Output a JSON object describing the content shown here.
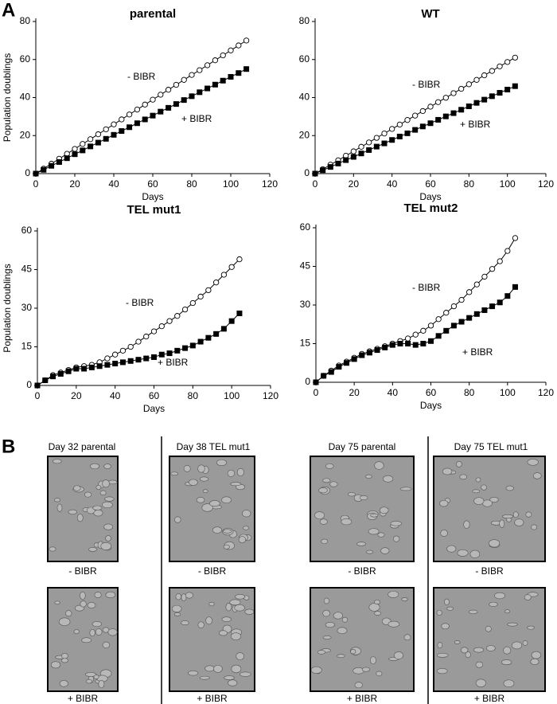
{
  "chart_data": [
    {
      "type": "line",
      "title": "parental",
      "xlabel": "Days",
      "ylabel": "Population doublings",
      "xlim": [
        0,
        120
      ],
      "xticks": [
        0,
        20,
        40,
        60,
        80,
        100,
        120
      ],
      "ylim": [
        0,
        80
      ],
      "yticks": [
        0,
        20,
        40,
        60,
        80
      ],
      "x": [
        0,
        4,
        8,
        12,
        16,
        20,
        24,
        28,
        32,
        36,
        40,
        44,
        48,
        52,
        56,
        60,
        64,
        68,
        72,
        76,
        80,
        84,
        88,
        92,
        96,
        100,
        104,
        108
      ],
      "series": [
        {
          "name": "- BIBR",
          "marker": "circle",
          "color": "#000000",
          "values": [
            0,
            2.6,
            5.2,
            7.8,
            10.4,
            13,
            15.6,
            18.1,
            20.7,
            23.3,
            25.9,
            28.5,
            31.1,
            33.7,
            36.3,
            38.9,
            41.5,
            44.1,
            46.7,
            49.3,
            51.9,
            54.4,
            57,
            59.6,
            62.2,
            64.8,
            67.4,
            70
          ]
        },
        {
          "name": "+ BIBR",
          "marker": "square",
          "color": "#000000",
          "values": [
            0,
            2,
            4.1,
            6.1,
            8.1,
            10.2,
            12.2,
            14.3,
            16.3,
            18.3,
            20.4,
            22.4,
            24.4,
            26.5,
            28.5,
            30.5,
            32.6,
            34.6,
            36.6,
            38.7,
            40.7,
            42.8,
            44.8,
            46.8,
            48.9,
            50.9,
            52.9,
            55
          ]
        }
      ]
    },
    {
      "type": "line",
      "title": "WT",
      "xlabel": "Days",
      "xlim": [
        0,
        120
      ],
      "xticks": [
        0,
        20,
        40,
        60,
        80,
        100,
        120
      ],
      "ylim": [
        0,
        80
      ],
      "yticks": [
        0,
        20,
        40,
        60,
        80
      ],
      "x": [
        0,
        4,
        8,
        12,
        16,
        20,
        24,
        28,
        32,
        36,
        40,
        44,
        48,
        52,
        56,
        60,
        64,
        68,
        72,
        76,
        80,
        84,
        88,
        92,
        96,
        100,
        104
      ],
      "series": [
        {
          "name": "- BIBR",
          "marker": "circle",
          "color": "#000000",
          "values": [
            0,
            2.3,
            4.7,
            7,
            9.4,
            11.7,
            14.1,
            16.4,
            18.8,
            21.1,
            23.5,
            25.8,
            28.2,
            30.5,
            32.9,
            35.2,
            37.6,
            39.9,
            42.3,
            44.6,
            47,
            49.3,
            51.7,
            54,
            56.4,
            58.7,
            61
          ]
        },
        {
          "name": "+ BIBR",
          "marker": "square",
          "color": "#000000",
          "values": [
            0,
            1.8,
            3.5,
            5.3,
            7.1,
            8.8,
            10.6,
            12.4,
            14.2,
            15.9,
            17.7,
            19.5,
            21.2,
            23,
            24.8,
            26.5,
            28.3,
            30.1,
            31.8,
            33.6,
            35.4,
            37.2,
            38.9,
            40.7,
            42.5,
            44.2,
            46
          ]
        }
      ]
    },
    {
      "type": "line",
      "title": "TEL mut1",
      "xlabel": "Days",
      "ylabel": "Population doublings",
      "xlim": [
        0,
        120
      ],
      "xticks": [
        0,
        20,
        40,
        60,
        80,
        100,
        120
      ],
      "ylim": [
        0,
        60
      ],
      "yticks": [
        0,
        15,
        30,
        45,
        60
      ],
      "x": [
        0,
        4,
        8,
        12,
        16,
        20,
        24,
        28,
        32,
        36,
        40,
        44,
        48,
        52,
        56,
        60,
        64,
        68,
        72,
        76,
        80,
        84,
        88,
        92,
        96,
        100,
        104
      ],
      "series": [
        {
          "name": "- BIBR",
          "marker": "circle",
          "color": "#000000",
          "values": [
            0,
            2,
            4,
            5,
            6,
            7,
            7.5,
            8,
            9,
            10.5,
            12,
            13.5,
            15,
            17,
            19,
            21,
            23,
            25,
            27,
            29.5,
            32,
            34.5,
            37,
            40,
            43,
            46,
            49
          ]
        },
        {
          "name": "+ BIBR",
          "marker": "square",
          "color": "#000000",
          "values": [
            0,
            2,
            3.5,
            4.5,
            5.5,
            6.5,
            6.5,
            7,
            7.5,
            8,
            8.5,
            9,
            9.5,
            10,
            10.5,
            11,
            12,
            12.5,
            13.5,
            14.5,
            15.5,
            17,
            18.5,
            20,
            22,
            25,
            28
          ]
        }
      ]
    },
    {
      "type": "line",
      "title": "TEL mut2",
      "xlabel": "Days",
      "xlim": [
        0,
        120
      ],
      "xticks": [
        0,
        20,
        40,
        60,
        80,
        100,
        120
      ],
      "ylim": [
        0,
        60
      ],
      "yticks": [
        0,
        15,
        30,
        45,
        60
      ],
      "x": [
        0,
        4,
        8,
        12,
        16,
        20,
        24,
        28,
        32,
        36,
        40,
        44,
        48,
        52,
        56,
        60,
        64,
        68,
        72,
        76,
        80,
        84,
        88,
        92,
        96,
        100,
        104
      ],
      "series": [
        {
          "name": "- BIBR",
          "marker": "circle",
          "color": "#000000",
          "values": [
            0,
            2.5,
            4.5,
            6.5,
            8,
            9.5,
            11,
            12,
            13,
            14,
            15,
            16,
            17,
            18.5,
            20,
            22,
            24.5,
            27,
            29.5,
            32,
            35,
            38,
            41,
            44,
            47,
            51,
            56
          ]
        },
        {
          "name": "+ BIBR",
          "marker": "square",
          "color": "#000000",
          "values": [
            0,
            2.5,
            4,
            6,
            7.5,
            9,
            10.5,
            11.5,
            12.5,
            13.5,
            14.5,
            15,
            15,
            14.5,
            15,
            16,
            18,
            20,
            22,
            23.5,
            25,
            26.5,
            28,
            29.5,
            31,
            33.5,
            37
          ]
        }
      ]
    }
  ],
  "panel_a": {
    "label": "A"
  },
  "panel_b": {
    "label": "B",
    "columns": [
      {
        "title": "Day 32 parental",
        "top_label": "- BIBR",
        "bottom_label": "+ BIBR"
      },
      {
        "title": "Day 38 TEL mut1",
        "top_label": "- BIBR",
        "bottom_label": "+ BIBR"
      },
      {
        "title": "Day 75 parental",
        "top_label": "- BIBR",
        "bottom_label": "+ BIBR"
      },
      {
        "title": "Day 75 TEL mut1",
        "top_label": "- BIBR",
        "bottom_label": "+ BIBR"
      }
    ]
  }
}
